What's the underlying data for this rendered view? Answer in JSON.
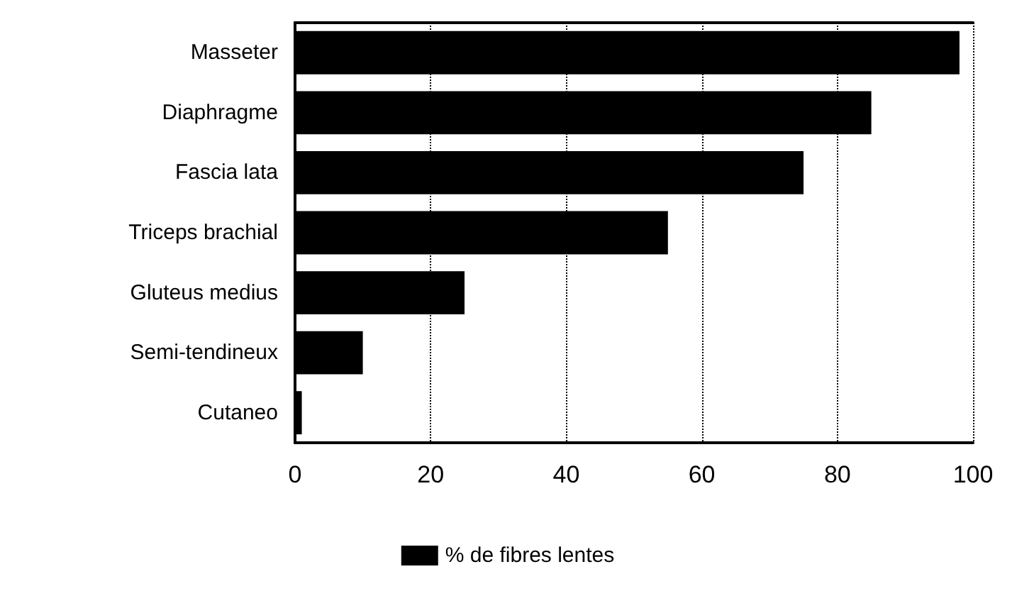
{
  "chart_data": {
    "type": "bar",
    "orientation": "horizontal",
    "categories": [
      "Masseter",
      "Diaphragme",
      "Fascia lata",
      "Triceps brachial",
      "Gluteus medius",
      "Semi-tendineux",
      "Cutaneo"
    ],
    "series": [
      {
        "name": "% de fibres lentes",
        "color": "#000000",
        "values": [
          98,
          85,
          75,
          55,
          25,
          10,
          1
        ]
      }
    ],
    "xlim": [
      0,
      100
    ],
    "xticks": [
      0,
      20,
      40,
      60,
      80,
      100
    ],
    "grid": "x",
    "legend": "bottom"
  }
}
